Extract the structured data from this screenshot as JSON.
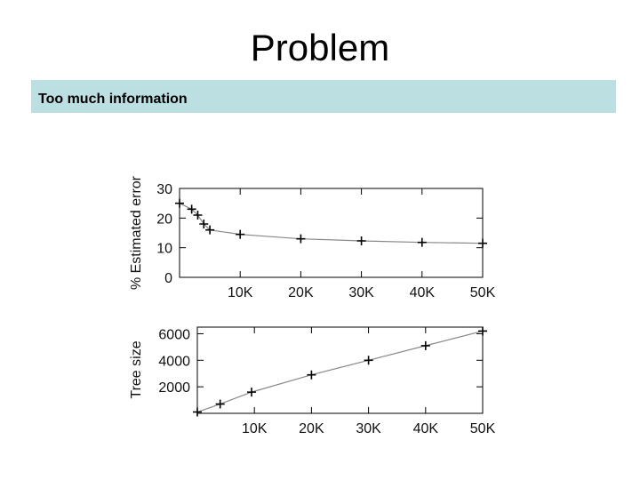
{
  "slide": {
    "title": "Problem",
    "subtitle": "Too much information"
  },
  "chart_data": [
    {
      "type": "line",
      "ylabel": "% Estimated error",
      "xlabel": "",
      "xlim": [
        0,
        50000
      ],
      "ylim": [
        0,
        30
      ],
      "x_ticks": [
        10000,
        20000,
        30000,
        40000,
        50000
      ],
      "x_tick_labels": [
        "10K",
        "20K",
        "30K",
        "40K",
        "50K"
      ],
      "y_ticks": [
        0,
        10,
        20,
        30
      ],
      "y_tick_labels": [
        "0",
        "10",
        "20",
        "30"
      ],
      "series": [
        {
          "x": [
            0,
            2000,
            3000,
            4000,
            5000,
            10000,
            20000,
            30000,
            40000,
            50000
          ],
          "y": [
            25,
            23,
            21,
            18,
            16,
            14.5,
            13,
            12.3,
            11.8,
            11.5
          ]
        }
      ]
    },
    {
      "type": "line",
      "ylabel": "Tree size",
      "xlabel": "",
      "xlim": [
        0,
        50000
      ],
      "ylim": [
        0,
        6500
      ],
      "x_ticks": [
        10000,
        20000,
        30000,
        40000,
        50000
      ],
      "x_tick_labels": [
        "10K",
        "20K",
        "30K",
        "40K",
        "50K"
      ],
      "y_ticks": [
        2000,
        4000,
        6000
      ],
      "y_tick_labels": [
        "2000",
        "4000",
        "6000"
      ],
      "series": [
        {
          "x": [
            0,
            4000,
            9500,
            20000,
            30000,
            40000,
            50000
          ],
          "y": [
            100,
            700,
            1600,
            2900,
            4000,
            5100,
            6200
          ]
        }
      ]
    }
  ]
}
